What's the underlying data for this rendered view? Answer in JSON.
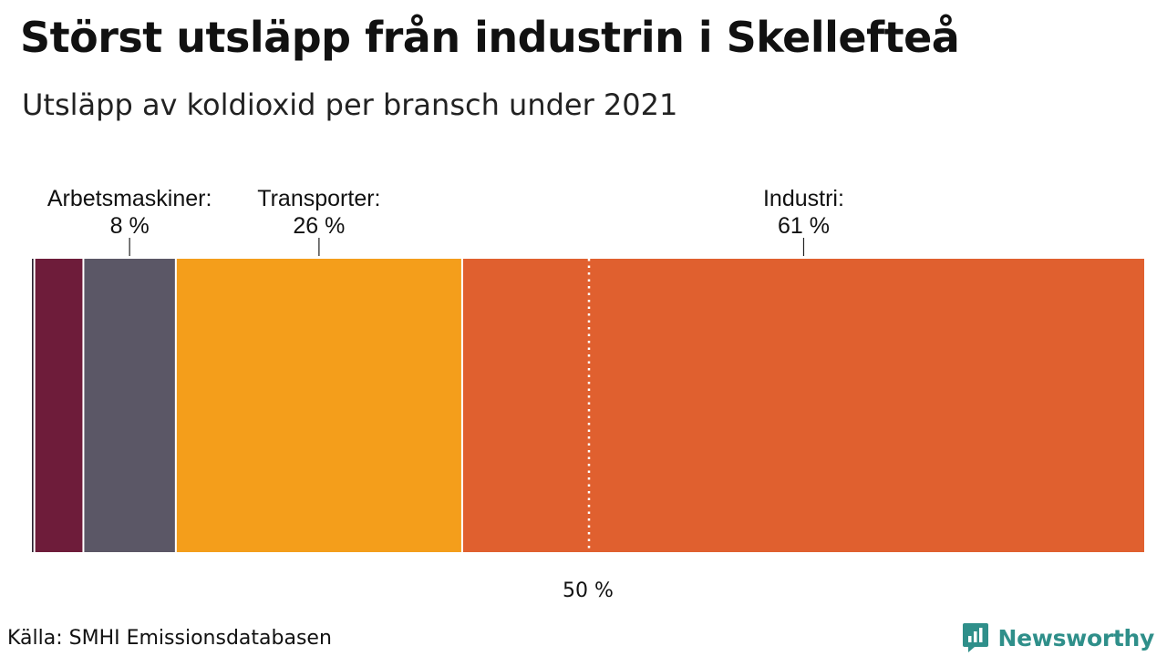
{
  "header": {
    "title": "Störst utsläpp från industrin i Skellefteå",
    "subtitle": "Utsläpp av koldioxid per bransch under 2021"
  },
  "footer": {
    "source": "Källa: SMHI Emissionsdatabasen",
    "brand": "Newsworthy",
    "brand_color": "#2f8f8a"
  },
  "chart_data": {
    "type": "bar",
    "orientation": "horizontal",
    "stacked": true,
    "title": "Störst utsläpp från industrin i Skellefteå",
    "subtitle": "Utsläpp av koldioxid per bransch under 2021",
    "xlim": [
      0,
      100
    ],
    "unit": "%",
    "reference_line": {
      "value": 50,
      "label": "50 %",
      "style": "dotted"
    },
    "segments": [
      {
        "name": "",
        "value": 0.3,
        "color": "#2b2330",
        "labeled": false
      },
      {
        "name": "",
        "value": 4.4,
        "color": "#6e1c3a",
        "labeled": false
      },
      {
        "name": "Arbetsmaskiner",
        "value": 8.3,
        "display_label": "Arbetsmaskiner:",
        "display_value": "8 %",
        "color": "#5b5766",
        "labeled": true
      },
      {
        "name": "Transporter",
        "value": 25.7,
        "display_label": "Transporter:",
        "display_value": "26 %",
        "color": "#f49e1b",
        "labeled": true
      },
      {
        "name": "Industri",
        "value": 61.3,
        "display_label": "Industri:",
        "display_value": "61 %",
        "color": "#e0602f",
        "labeled": true
      }
    ]
  }
}
